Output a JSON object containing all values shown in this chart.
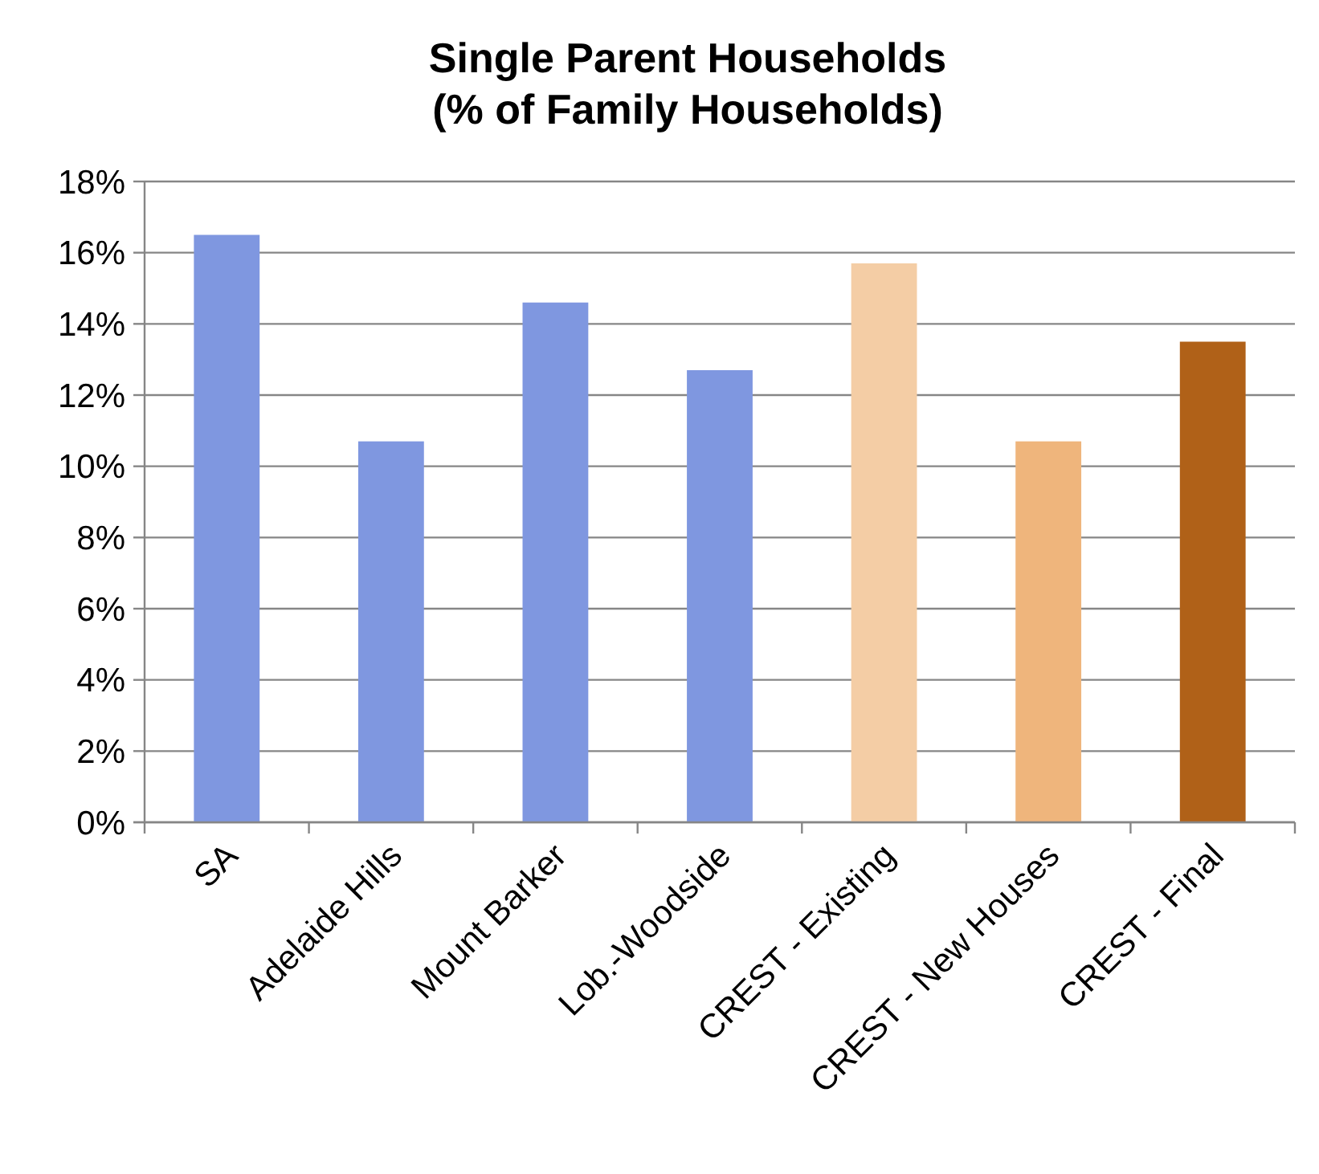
{
  "chart_data": {
    "type": "bar",
    "title": "Single Parent Households\n(% of Family Households)",
    "categories": [
      "SA",
      "Adelaide Hills",
      "Mount Barker",
      "Lob.-Woodside",
      "CREST - Existing",
      "CREST - New Houses",
      "CREST - Final"
    ],
    "values": [
      16.5,
      10.7,
      14.6,
      12.7,
      15.7,
      10.7,
      13.5
    ],
    "colors": [
      "#7f97e0",
      "#7f97e0",
      "#7f97e0",
      "#7f97e0",
      "#f4cda5",
      "#efb57c",
      "#b06118"
    ],
    "ylim": [
      0,
      18
    ],
    "yticks": [
      {
        "value": 0,
        "label": "0%"
      },
      {
        "value": 2,
        "label": "2%"
      },
      {
        "value": 4,
        "label": "4%"
      },
      {
        "value": 6,
        "label": "6%"
      },
      {
        "value": 8,
        "label": "8%"
      },
      {
        "value": 10,
        "label": "10%"
      },
      {
        "value": 12,
        "label": "12%"
      },
      {
        "value": 14,
        "label": "14%"
      },
      {
        "value": 16,
        "label": "16%"
      },
      {
        "value": 18,
        "label": "18%"
      }
    ],
    "grid": "y"
  }
}
